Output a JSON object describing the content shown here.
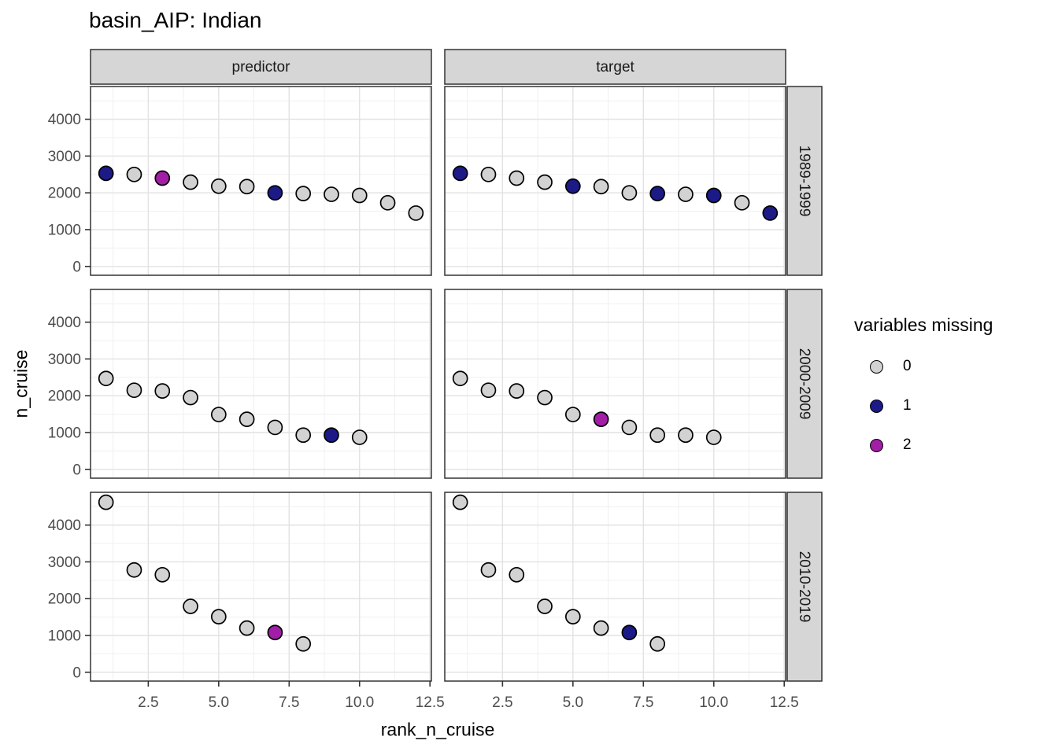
{
  "title": "basin_AIP: Indian",
  "axes": {
    "x_label": "rank_n_cruise",
    "y_label": "n_cruise",
    "x_ticks": [
      2.5,
      5.0,
      7.5,
      10.0,
      12.5
    ],
    "x_tick_labels": [
      "2.5",
      "5.0",
      "7.5",
      "10.0",
      "12.5"
    ],
    "y_ticks": [
      0,
      1000,
      2000,
      3000,
      4000
    ],
    "y_tick_labels": [
      "0",
      "1000",
      "2000",
      "3000",
      "4000"
    ]
  },
  "facets": {
    "columns": [
      "predictor",
      "target"
    ],
    "rows": [
      "1989-1999",
      "2000-2009",
      "2010-2019"
    ]
  },
  "legend": {
    "title": "variables missing",
    "items": [
      {
        "label": "0",
        "color": "#d2d2d2"
      },
      {
        "label": "1",
        "color": "#1c1a87"
      },
      {
        "label": "2",
        "color": "#a21ea6"
      }
    ]
  },
  "colors": {
    "point_stroke": "#000000",
    "strip_bg": "#d6d6d6",
    "strip_border": "#333333",
    "panel_bg": "#ffffff",
    "panel_border": "#333333",
    "grid_major": "#e2e2e2",
    "grid_minor": "#f0f0f0",
    "tick_mark": "#333333",
    "tick_label": "#4d4d4d",
    "strip_text": "#1a1a1a"
  },
  "chart_data": {
    "type": "scatter",
    "title": "basin_AIP: Indian",
    "xlabel": "rank_n_cruise",
    "ylabel": "n_cruise",
    "color_variable": "variables missing",
    "xlim": [
      0.45,
      12.55
    ],
    "ylim": [
      -240,
      4890
    ],
    "x_ticks": [
      2.5,
      5.0,
      7.5,
      10.0,
      12.5
    ],
    "y_ticks": [
      0,
      1000,
      2000,
      3000,
      4000
    ],
    "x_minor": [
      1.25,
      3.75,
      6.25,
      8.75,
      11.25
    ],
    "y_minor": [
      500,
      1500,
      2500,
      3500,
      4500
    ],
    "grid": true,
    "legend_position": "right",
    "panels": [
      {
        "col": "predictor",
        "row": "1989-1999",
        "x": [
          1,
          2,
          3,
          4,
          5,
          6,
          7,
          8,
          9,
          10,
          11,
          12
        ],
        "y": [
          2530,
          2500,
          2400,
          2290,
          2180,
          2170,
          2000,
          1980,
          1960,
          1930,
          1730,
          1450
        ],
        "missing": [
          1,
          0,
          2,
          0,
          0,
          0,
          1,
          0,
          0,
          0,
          0,
          0
        ]
      },
      {
        "col": "target",
        "row": "1989-1999",
        "x": [
          1,
          2,
          3,
          4,
          5,
          6,
          7,
          8,
          9,
          10,
          11,
          12
        ],
        "y": [
          2530,
          2500,
          2400,
          2290,
          2180,
          2170,
          2000,
          1980,
          1960,
          1930,
          1730,
          1450
        ],
        "missing": [
          1,
          0,
          0,
          0,
          1,
          0,
          0,
          1,
          0,
          1,
          0,
          1
        ]
      },
      {
        "col": "predictor",
        "row": "2000-2009",
        "x": [
          1,
          2,
          3,
          4,
          5,
          6,
          7,
          8,
          9,
          10
        ],
        "y": [
          2470,
          2150,
          2130,
          1950,
          1490,
          1360,
          1140,
          930,
          930,
          870
        ],
        "missing": [
          0,
          0,
          0,
          0,
          0,
          0,
          0,
          0,
          1,
          0
        ]
      },
      {
        "col": "target",
        "row": "2000-2009",
        "x": [
          1,
          2,
          3,
          4,
          5,
          6,
          7,
          8,
          9,
          10
        ],
        "y": [
          2470,
          2150,
          2130,
          1950,
          1490,
          1360,
          1140,
          930,
          930,
          870
        ],
        "missing": [
          0,
          0,
          0,
          0,
          0,
          2,
          0,
          0,
          0,
          0
        ]
      },
      {
        "col": "predictor",
        "row": "2010-2019",
        "x": [
          1,
          2,
          3,
          4,
          5,
          6,
          7,
          8
        ],
        "y": [
          4620,
          2780,
          2650,
          1790,
          1510,
          1200,
          1080,
          770
        ],
        "missing": [
          0,
          0,
          0,
          0,
          0,
          0,
          2,
          0
        ]
      },
      {
        "col": "target",
        "row": "2010-2019",
        "x": [
          1,
          2,
          3,
          4,
          5,
          6,
          7,
          8
        ],
        "y": [
          4620,
          2780,
          2650,
          1790,
          1510,
          1200,
          1080,
          770
        ],
        "missing": [
          0,
          0,
          0,
          0,
          0,
          0,
          1,
          0
        ]
      }
    ]
  }
}
